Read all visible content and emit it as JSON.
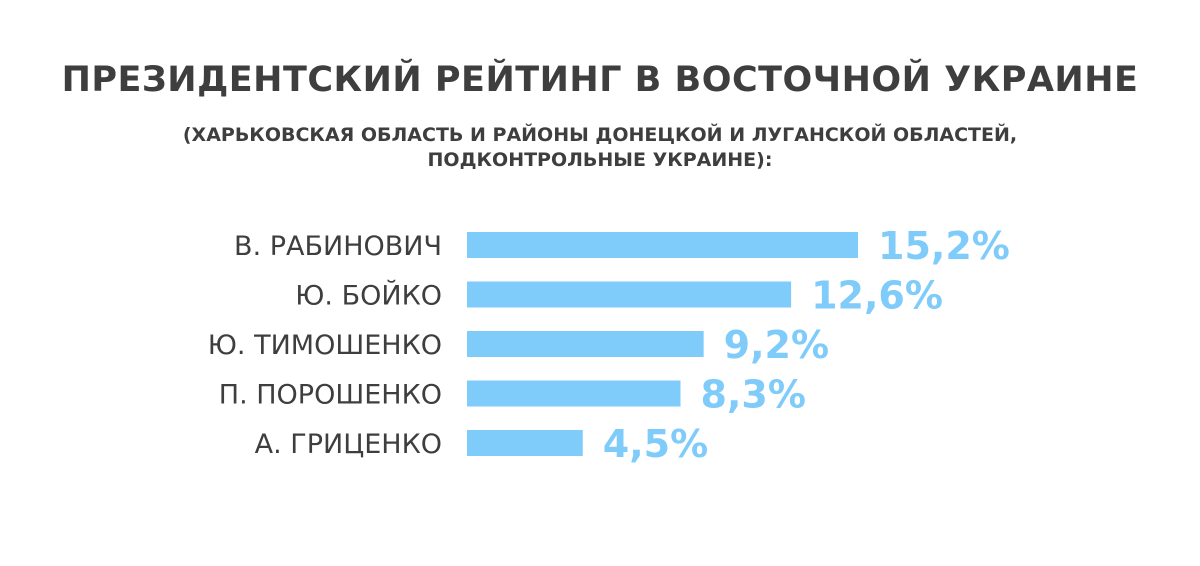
{
  "header": {
    "title": "ПРЕЗИДЕНТСКИЙ РЕЙТИНГ В ВОСТОЧНОЙ УКРАИНЕ",
    "subtitle_line1": "(ХАРЬКОВСКАЯ ОБЛАСТЬ И РАЙОНЫ ДОНЕЦКОЙ И ЛУГАНСКОЙ ОБЛАСТЕЙ,",
    "subtitle_line2": "ПОДКОНТРОЛЬНЫЕ УКРАИНЕ):"
  },
  "colors": {
    "bar": "#7fcbfa",
    "value_text": "#7fcbfa",
    "text": "#3e3e3e"
  },
  "chart_data": {
    "type": "bar",
    "orientation": "horizontal",
    "title": "ПРЕЗИДЕНТСКИЙ РЕЙТИНГ В ВОСТОЧНОЙ УКРАИНЕ",
    "subtitle": "(ХАРЬКОВСКАЯ ОБЛАСТЬ И РАЙОНЫ ДОНЕЦКОЙ И ЛУГАНСКОЙ ОБЛАСТЕЙ, ПОДКОНТРОЛЬНЫЕ УКРАИНЕ):",
    "categories": [
      "В. РАБИНОВИЧ",
      "Ю. БОЙКО",
      "Ю. ТИМОШЕНКО",
      "П. ПОРОШЕНКО",
      "А. ГРИЦЕНКО"
    ],
    "values": [
      15.2,
      12.6,
      9.2,
      8.3,
      4.5
    ],
    "value_labels": [
      "15,2%",
      "12,6%",
      "9,2%",
      "8,3%",
      "4,5%"
    ],
    "unit": "%",
    "grid": false,
    "legend": "none"
  }
}
